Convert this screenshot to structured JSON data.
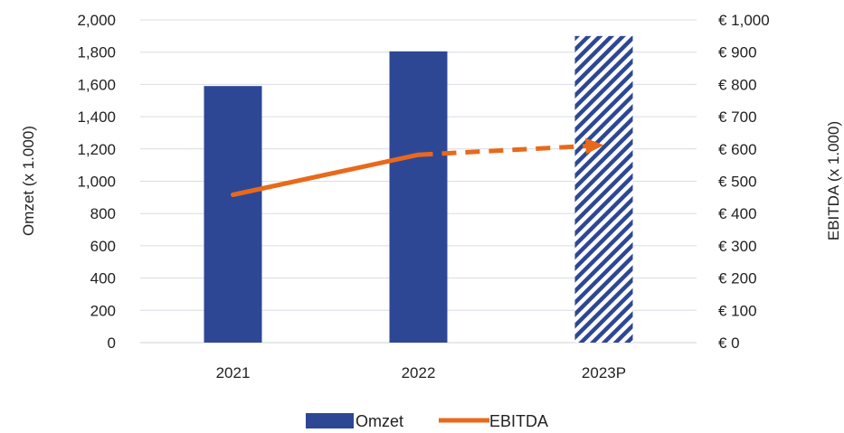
{
  "chart_data": {
    "type": "bar",
    "categories": [
      "2021",
      "2022",
      "2023P"
    ],
    "series": [
      {
        "name": "Omzet",
        "type": "bar",
        "axis": "left",
        "values": [
          1590,
          1805,
          1900
        ],
        "projected": [
          false,
          false,
          true
        ],
        "color": "#2E4795"
      },
      {
        "name": "EBITDA",
        "type": "line",
        "axis": "right",
        "values": [
          458,
          582,
          612
        ],
        "projected": [
          false,
          false,
          true
        ],
        "color": "#E8691B"
      }
    ],
    "ylabel": "Omzet (x 1.000)",
    "y2label": "EBITDA (x 1.000)",
    "ylim": [
      0,
      2000
    ],
    "y2lim": [
      0,
      1000
    ],
    "yticks": [
      "0",
      "200",
      "400",
      "600",
      "800",
      "1,000",
      "1,200",
      "1,400",
      "1,600",
      "1,800",
      "2,000"
    ],
    "y2ticks": [
      "€ 0",
      "€ 100",
      "€ 200",
      "€ 300",
      "€ 400",
      "€ 500",
      "€ 600",
      "€ 700",
      "€ 800",
      "€ 900",
      "€ 1,000"
    ],
    "grid": true,
    "legend_position": "bottom"
  }
}
